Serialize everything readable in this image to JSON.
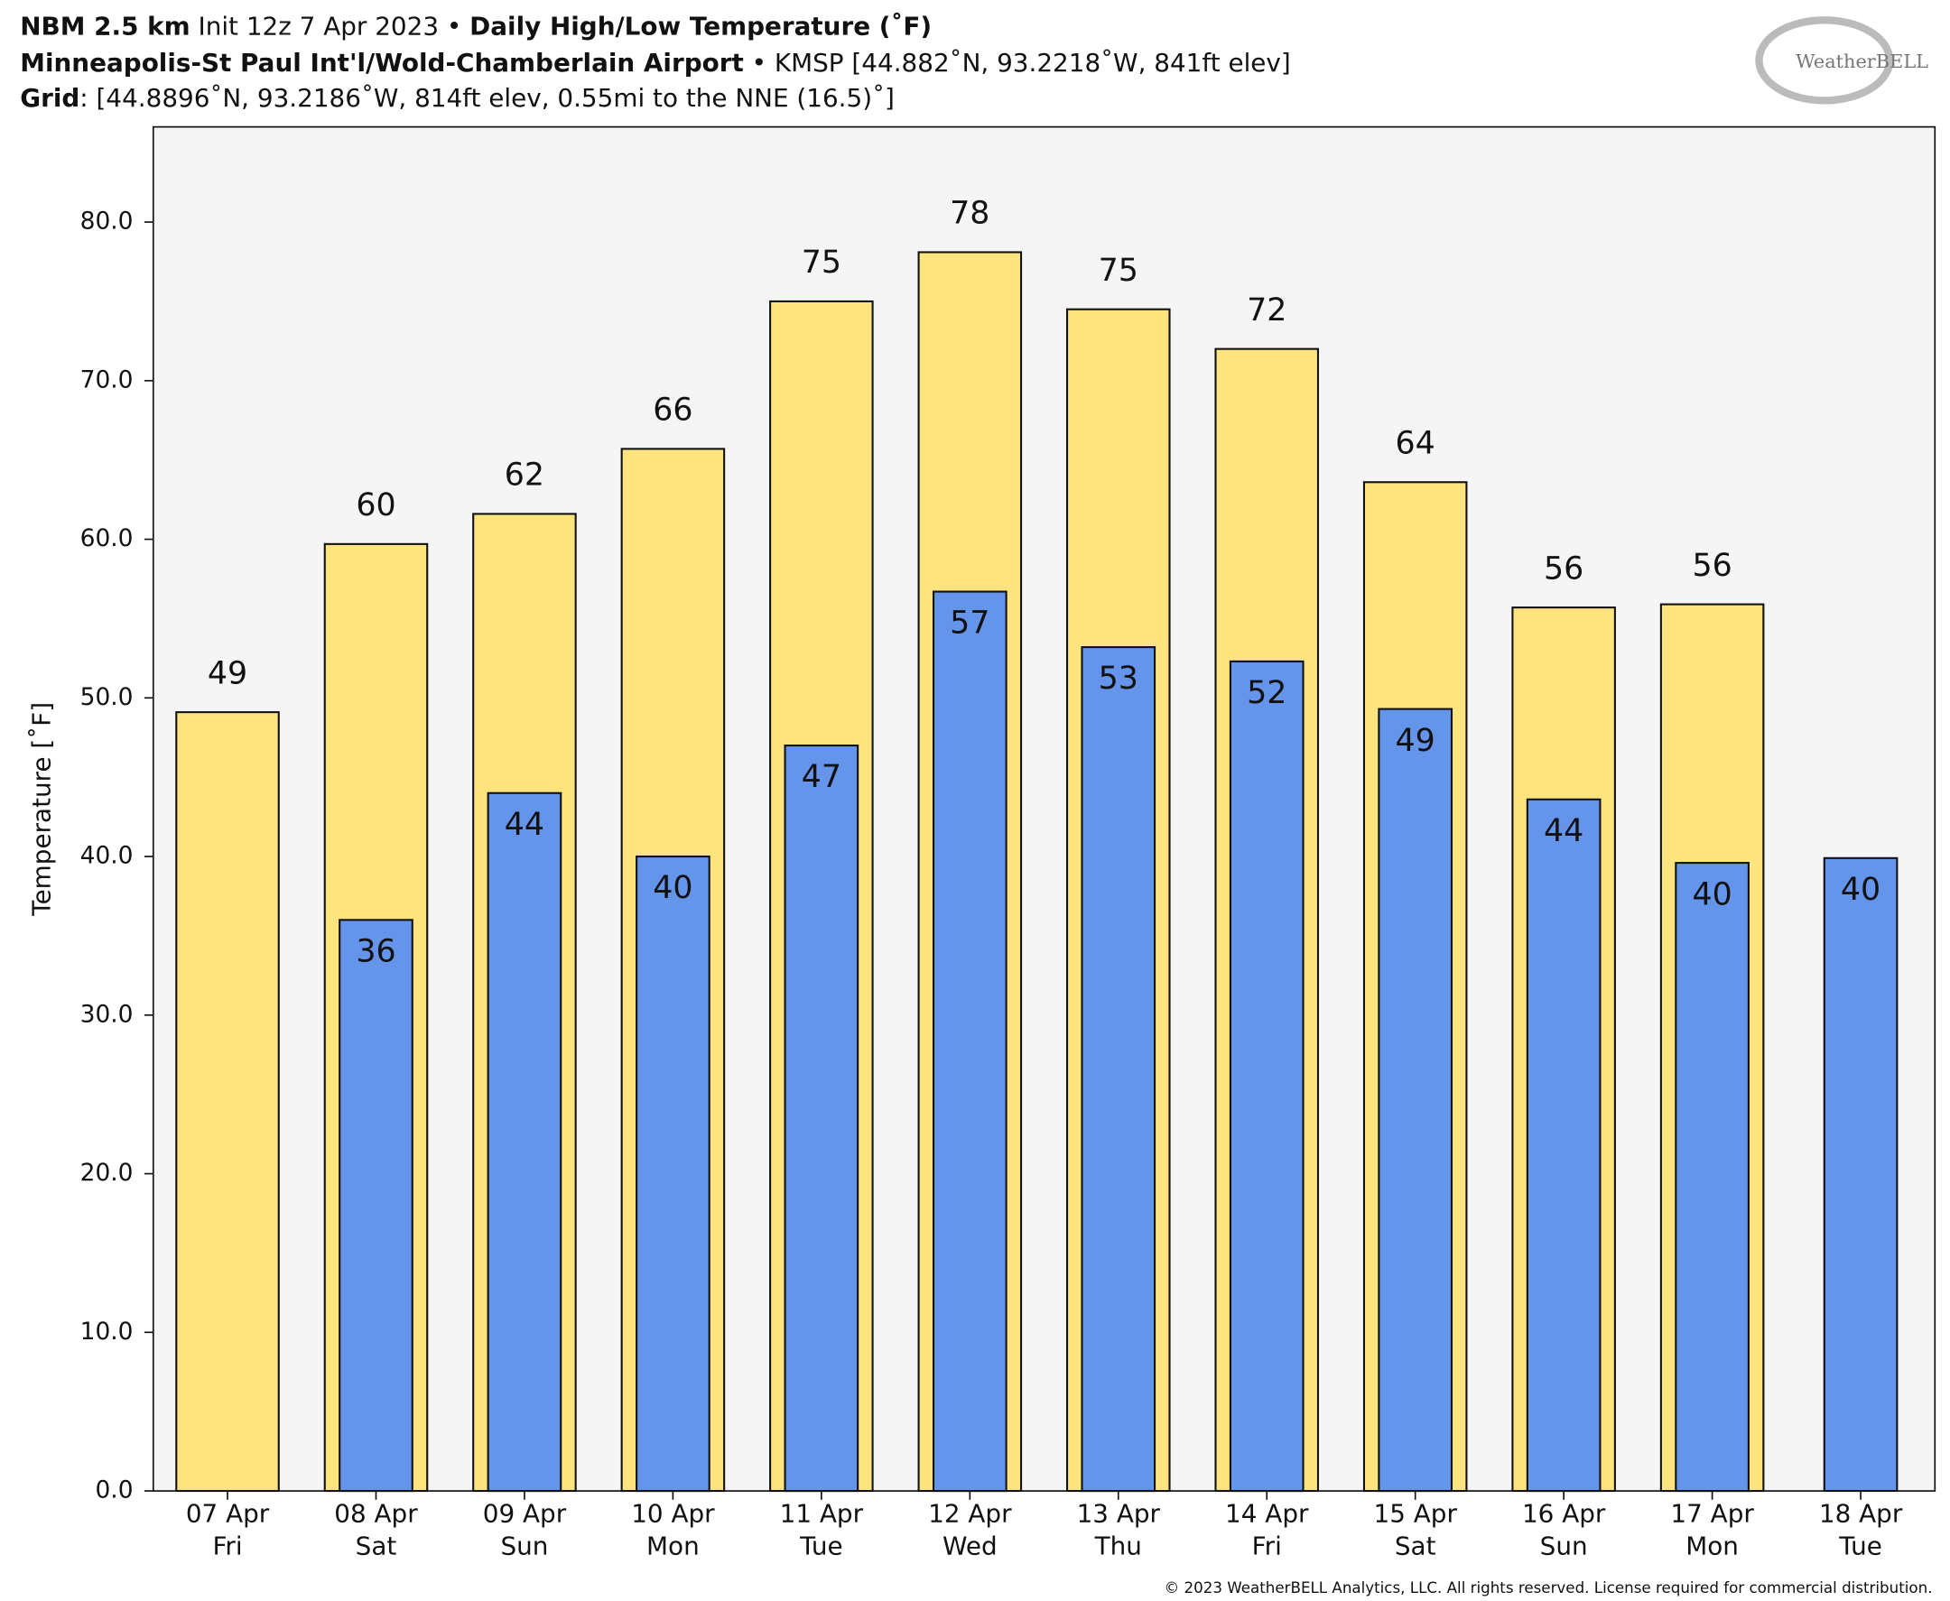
{
  "chart_data": {
    "type": "bar",
    "header": [
      [
        "NBM 2.5 km",
        " Init 12z 7 Apr 2023 • ",
        "Daily High/Low Temperature (˚F)"
      ],
      [
        "Minneapolis-St Paul Int'l/Wold-Chamberlain Airport",
        " • KMSP [44.882˚N, 93.2218˚W, 841ft elev]"
      ],
      [
        "Grid",
        ": [44.8896˚N, 93.2186˚W, 814ft elev, 0.55mi to the NNE (16.5)˚]"
      ]
    ],
    "logo": "WeatherBELL",
    "copyright": "© 2023 WeatherBELL Analytics, LLC. All rights reserved. License required for commercial distribution.",
    "y_label": "Temperature [˚F]",
    "categories": [
      [
        "07 Apr",
        "Fri"
      ],
      [
        "08 Apr",
        "Sat"
      ],
      [
        "09 Apr",
        "Sun"
      ],
      [
        "10 Apr",
        "Mon"
      ],
      [
        "11 Apr",
        "Tue"
      ],
      [
        "12 Apr",
        "Wed"
      ],
      [
        "13 Apr",
        "Thu"
      ],
      [
        "14 Apr",
        "Fri"
      ],
      [
        "15 Apr",
        "Sat"
      ],
      [
        "16 Apr",
        "Sun"
      ],
      [
        "17 Apr",
        "Mon"
      ],
      [
        "18 Apr",
        "Tue"
      ]
    ],
    "series": [
      {
        "color": "#fde47f",
        "values": [
          49.1,
          59.7,
          61.6,
          65.7,
          75.0,
          78.1,
          74.5,
          72.0,
          63.6,
          55.7,
          55.9,
          null
        ],
        "value_labels": [
          "49",
          "60",
          "62",
          "66",
          "75",
          "78",
          "75",
          "72",
          "64",
          "56",
          "56",
          null
        ]
      },
      {
        "color": "#6495ea",
        "values": [
          null,
          36.0,
          44.0,
          40.0,
          47.0,
          56.7,
          53.2,
          52.3,
          49.3,
          43.6,
          39.6,
          39.9
        ],
        "value_labels": [
          null,
          "36",
          "44",
          "40",
          "47",
          "57",
          "53",
          "52",
          "49",
          "44",
          "40",
          "40"
        ]
      }
    ],
    "ylim": [
      0,
      86
    ],
    "yticks": [
      {
        "value": 0,
        "label": "0.0"
      },
      {
        "value": 10,
        "label": "10.0"
      },
      {
        "value": 20,
        "label": "20.0"
      },
      {
        "value": 30,
        "label": "30.0"
      },
      {
        "value": 40,
        "label": "40.0"
      },
      {
        "value": 50,
        "label": "50.0"
      },
      {
        "value": 60,
        "label": "60.0"
      },
      {
        "value": 70,
        "label": "70.0"
      },
      {
        "value": 80,
        "label": "80.0"
      }
    ],
    "grid": false
  }
}
